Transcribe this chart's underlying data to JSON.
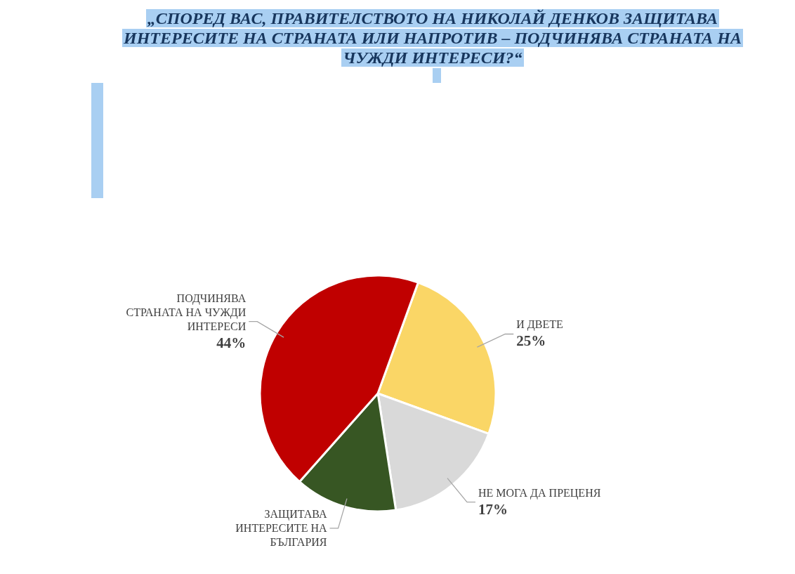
{
  "chart_data": {
    "type": "pie",
    "title": "„СПОРЕД ВАС, ПРАВИТЕЛСТВОТО НА НИКОЛАЙ ДЕНКОВ ЗАЩИТАВА ИНТЕРЕСИТЕ НА СТРАНАТА ИЛИ НАПРОТИВ – ПОДЧИНЯВА СТРАНАТА НА ЧУЖДИ ИНТЕРЕСИ?“",
    "categories": [
      "И ДВЕТЕ",
      "НЕ МОГА ДА ПРЕЦЕНЯ",
      "ЗАЩИТАВА ИНТЕРЕСИТЕ НА БЪЛГАРИЯ",
      "ПОДЧИНЯВА СТРАНАТА НА ЧУЖДИ ИНТЕРЕСИ"
    ],
    "values": [
      25,
      17,
      14,
      44
    ],
    "colors": [
      "#fad666",
      "#d9d9d9",
      "#375623",
      "#c00000"
    ],
    "value_labels": [
      "25%",
      "17%",
      null,
      "44%"
    ]
  }
}
